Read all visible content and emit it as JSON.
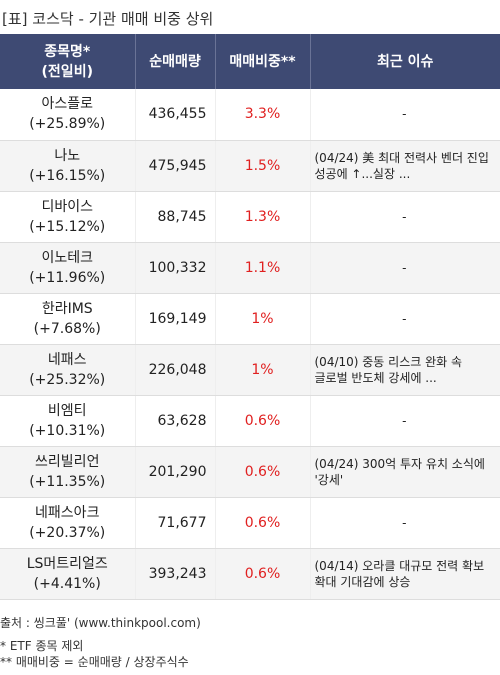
{
  "title": "[표] 코스닥 - 기관 매매 비중 상위",
  "headers": {
    "name_line1": "종목명*",
    "name_line2": "(전일비)",
    "volume": "순매매량",
    "ratio": "매매비중**",
    "issue": "최근 이슈"
  },
  "rows": [
    {
      "name": "아스플로",
      "change": "(+25.89%)",
      "volume": "436,455",
      "ratio": "3.3%",
      "issue": "-"
    },
    {
      "name": "나노",
      "change": "(+16.15%)",
      "volume": "475,945",
      "ratio": "1.5%",
      "issue": "(04/24) 美 최대 전력사 벤더 진입 성공에 ↑...실장 ..."
    },
    {
      "name": "디바이스",
      "change": "(+15.12%)",
      "volume": "88,745",
      "ratio": "1.3%",
      "issue": "-"
    },
    {
      "name": "이노테크",
      "change": "(+11.96%)",
      "volume": "100,332",
      "ratio": "1.1%",
      "issue": "-"
    },
    {
      "name": "한라IMS",
      "change": "(+7.68%)",
      "volume": "169,149",
      "ratio": "1%",
      "issue": "-"
    },
    {
      "name": "네패스",
      "change": "(+25.32%)",
      "volume": "226,048",
      "ratio": "1%",
      "issue": "(04/10) 중동 리스크 완화 속 글로벌 반도체 강세에 ..."
    },
    {
      "name": "비엠티",
      "change": "(+10.31%)",
      "volume": "63,628",
      "ratio": "0.6%",
      "issue": "-"
    },
    {
      "name": "쓰리빌리언",
      "change": "(+11.35%)",
      "volume": "201,290",
      "ratio": "0.6%",
      "issue": "(04/24) 300억 투자 유치 소식에 '강세'"
    },
    {
      "name": "네패스아크",
      "change": "(+20.37%)",
      "volume": "71,677",
      "ratio": "0.6%",
      "issue": "-"
    },
    {
      "name": "LS머트리얼즈",
      "change": "(+4.41%)",
      "volume": "393,243",
      "ratio": "0.6%",
      "issue": "(04/14) 오라클 대규모 전력 확보 확대 기대감에 상승"
    }
  ],
  "footer": {
    "source": "출처 : 씽크풀' (www.thinkpool.com)",
    "note1": "* ETF 종목 제외",
    "note2": "** 매매비중 = 순매매량 / 상장주식수"
  }
}
